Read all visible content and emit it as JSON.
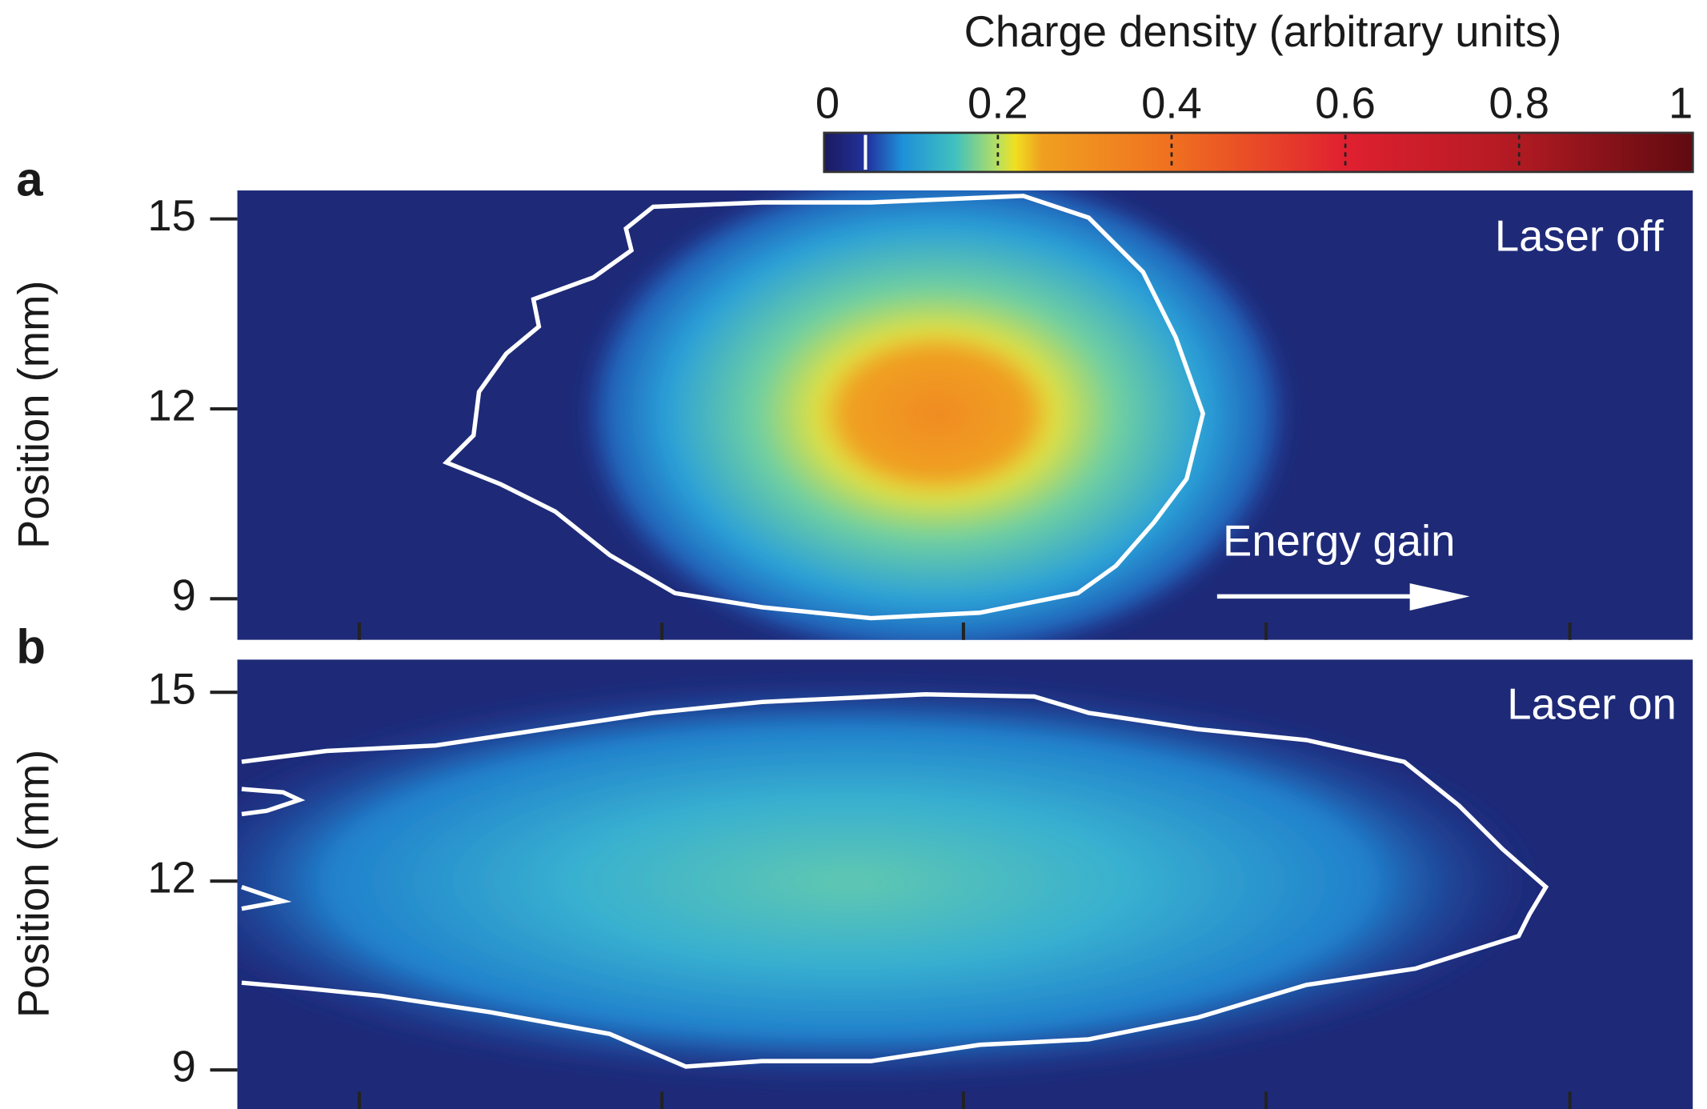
{
  "colorbar": {
    "label": "Charge density (arbitrary units)",
    "lim": [
      0,
      1
    ],
    "ticks": [
      0,
      0.2,
      0.4,
      0.6,
      0.8,
      1
    ]
  },
  "panels": [
    {
      "letter": "a",
      "ylabel": "Position (mm)",
      "ylim": [
        8.35,
        15.45
      ],
      "yticks": [
        9,
        12,
        15
      ],
      "annotation": "Laser off",
      "arrow_label": "Energy gain"
    },
    {
      "letter": "b",
      "ylabel": "Position (mm)",
      "ylim": [
        8.38,
        15.52
      ],
      "yticks": [
        9,
        12,
        15
      ],
      "annotation": "Laser on"
    }
  ]
}
